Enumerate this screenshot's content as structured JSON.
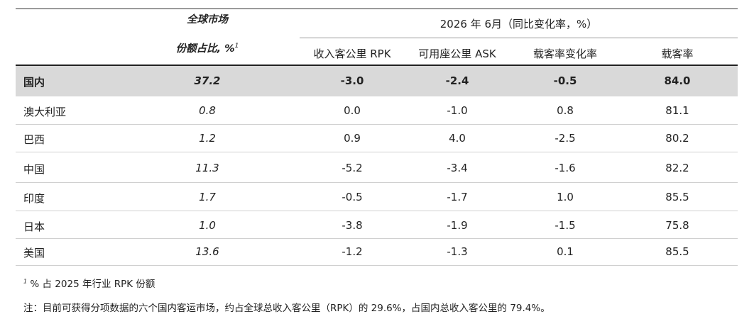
{
  "header": {
    "market_title": "全球市场",
    "share_label": "份额占比, %",
    "share_sup": "1",
    "period_title": "2026 年 6月（同比变化率，%）",
    "columns": [
      "收入客公里 RPK",
      "可用座公里 ASK",
      "载客率变化率",
      "载客率"
    ]
  },
  "rows": [
    {
      "name": "国内",
      "share": "37.2",
      "rpk": "-3.0",
      "ask": "-2.4",
      "lf_change": "-0.5",
      "lf": "84.0"
    },
    {
      "name": "澳大利亚",
      "share": "0.8",
      "rpk": "0.0",
      "ask": "-1.0",
      "lf_change": "0.8",
      "lf": "81.1"
    },
    {
      "name": "巴西",
      "share": "1.2",
      "rpk": "0.9",
      "ask": "4.0",
      "lf_change": "-2.5",
      "lf": "80.2"
    },
    {
      "name": "中国",
      "share": "11.3",
      "rpk": "-5.2",
      "ask": "-3.4",
      "lf_change": "-1.6",
      "lf": "82.2"
    },
    {
      "name": "印度",
      "share": "1.7",
      "rpk": "-0.5",
      "ask": "-1.7",
      "lf_change": "1.0",
      "lf": "85.5"
    },
    {
      "name": "日本",
      "share": "1.0",
      "rpk": "-3.8",
      "ask": "-1.9",
      "lf_change": "-1.5",
      "lf": "75.8"
    },
    {
      "name": "美国",
      "share": "13.6",
      "rpk": "-1.2",
      "ask": "-1.3",
      "lf_change": "0.1",
      "lf": "85.5"
    }
  ],
  "footnotes": {
    "note1_sup": "1",
    "note1_text": "% 占 2025 年行业 RPK 份额",
    "note2_text": "注：目前可获得分项数据的六个国内客运市场，约占全球总收入客公里（RPK）的 29.6%，占国内总收入客公里的 79.4%。"
  }
}
